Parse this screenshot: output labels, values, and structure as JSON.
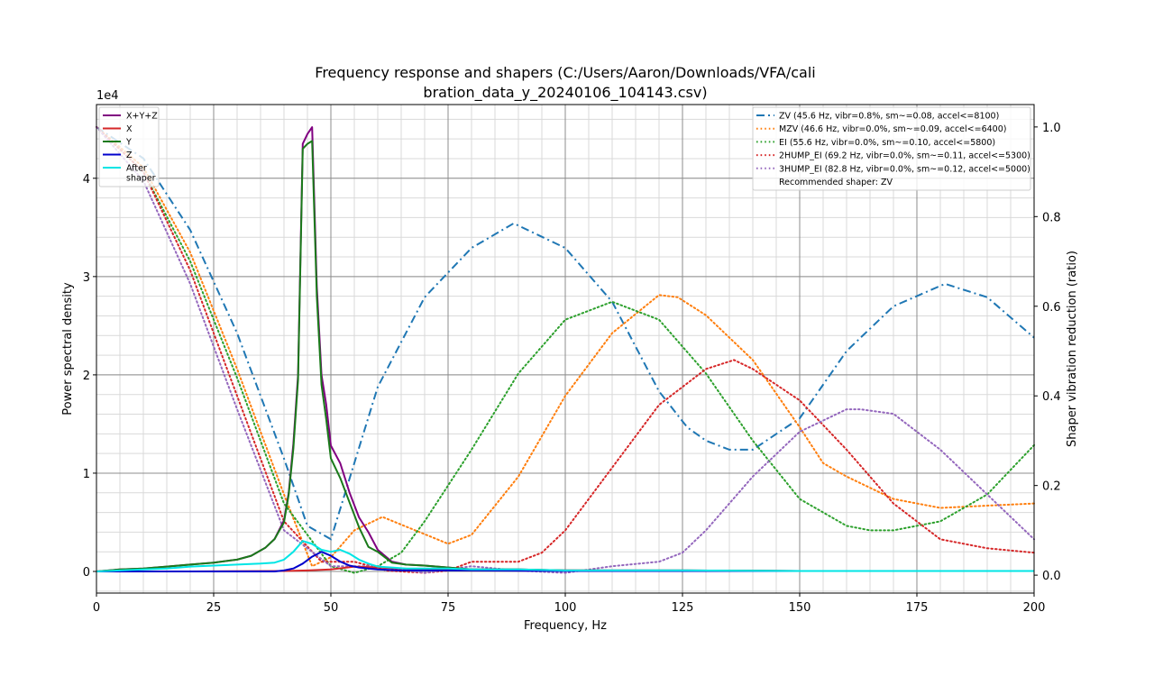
{
  "chart_data": {
    "type": "line",
    "title_line1": "Frequency response and shapers (C:/Users/Aaron/Downloads/VFA/cali",
    "title_line2": "bration_data_y_20240106_104143.csv)",
    "xlabel": "Frequency, Hz",
    "ylabel": "Power spectral density",
    "y2label": "Shaper vibration reduction (ratio)",
    "y_multiplier": "1e4",
    "xlim": [
      0,
      200
    ],
    "ylim": [
      -0.22,
      4.75
    ],
    "y2lim": [
      -0.04,
      1.05
    ],
    "x_ticks": [
      0,
      25,
      50,
      75,
      100,
      125,
      150,
      175,
      200
    ],
    "y_ticks": [
      0,
      1,
      2,
      3,
      4
    ],
    "y2_ticks": [
      0.0,
      0.2,
      0.4,
      0.6,
      0.8,
      1.0
    ],
    "y2_tick_labels": [
      "0.0",
      "0.2",
      "0.4",
      "0.6",
      "0.8",
      "1.0"
    ],
    "grid": true,
    "psd_legend_location": "upper-left",
    "shaper_legend_location": "upper-right",
    "psd_series": [
      {
        "name": "X+Y+Z",
        "color": "#800080",
        "dash": "none",
        "x": [
          0,
          5,
          10,
          15,
          20,
          25,
          30,
          33,
          36,
          38,
          40,
          41,
          42,
          43,
          44,
          45,
          46,
          47,
          48,
          49,
          50,
          52,
          54,
          56,
          58,
          60,
          63,
          66,
          70,
          75,
          80,
          90,
          100,
          125,
          150,
          175,
          200
        ],
        "y": [
          0,
          0.02,
          0.03,
          0.05,
          0.07,
          0.09,
          0.12,
          0.16,
          0.24,
          0.33,
          0.52,
          0.8,
          1.3,
          2.0,
          4.35,
          4.45,
          4.52,
          2.9,
          2.0,
          1.7,
          1.28,
          1.1,
          0.8,
          0.55,
          0.4,
          0.22,
          0.1,
          0.07,
          0.06,
          0.04,
          0.02,
          0.02,
          0.01,
          0.01,
          0.005,
          0.005,
          0.005
        ]
      },
      {
        "name": "X",
        "color": "#d62728",
        "dash": "none",
        "x": [
          0,
          20,
          40,
          45,
          50,
          55,
          60,
          70,
          80,
          100,
          150,
          200
        ],
        "y": [
          0,
          0.0,
          0.005,
          0.01,
          0.02,
          0.05,
          0.04,
          0.02,
          0.01,
          0.01,
          0.005,
          0.005
        ]
      },
      {
        "name": "Y",
        "color": "#1a7a1a",
        "dash": "none",
        "x": [
          0,
          5,
          10,
          15,
          20,
          25,
          30,
          33,
          36,
          38,
          40,
          41,
          42,
          43,
          44,
          45,
          46,
          47,
          48,
          49,
          50,
          52,
          54,
          56,
          58,
          60,
          63,
          66,
          70,
          75,
          80,
          90,
          100,
          125,
          150,
          175,
          200
        ],
        "y": [
          0,
          0.02,
          0.03,
          0.05,
          0.07,
          0.09,
          0.12,
          0.16,
          0.24,
          0.33,
          0.5,
          0.78,
          1.25,
          1.95,
          4.3,
          4.35,
          4.38,
          2.8,
          1.9,
          1.55,
          1.15,
          0.95,
          0.7,
          0.45,
          0.25,
          0.2,
          0.09,
          0.07,
          0.06,
          0.04,
          0.02,
          0.02,
          0.01,
          0.01,
          0.005,
          0.005,
          0.005
        ]
      },
      {
        "name": "Z",
        "color": "#0000cc",
        "dash": "none",
        "x": [
          0,
          20,
          38,
          40,
          42,
          44,
          46,
          48,
          50,
          52,
          54,
          56,
          58,
          60,
          65,
          70,
          80,
          100,
          150,
          200
        ],
        "y": [
          0,
          0,
          0.0,
          0.01,
          0.03,
          0.08,
          0.15,
          0.2,
          0.16,
          0.1,
          0.06,
          0.04,
          0.03,
          0.02,
          0.01,
          0.01,
          0.01,
          0.005,
          0.005,
          0.005
        ]
      },
      {
        "name": "After\nshaper",
        "color": "#00e5e5",
        "dash": "none",
        "x": [
          0,
          5,
          10,
          15,
          20,
          25,
          30,
          35,
          38,
          40,
          42,
          44,
          46,
          48,
          50,
          52,
          54,
          56,
          58,
          60,
          63,
          66,
          70,
          75,
          80,
          90,
          100,
          125,
          150,
          175,
          200
        ],
        "y": [
          0,
          0.01,
          0.02,
          0.03,
          0.05,
          0.06,
          0.07,
          0.08,
          0.09,
          0.12,
          0.2,
          0.31,
          0.28,
          0.22,
          0.2,
          0.22,
          0.18,
          0.12,
          0.08,
          0.05,
          0.04,
          0.03,
          0.03,
          0.03,
          0.02,
          0.02,
          0.01,
          0.01,
          0.005,
          0.005,
          0.005
        ]
      }
    ],
    "shaper_series": [
      {
        "name": "ZV (45.6 Hz, vibr=0.8%, sm~=0.08, accel<=8100)",
        "color": "#1f77b4",
        "dash": "dashdot",
        "x": [
          0,
          10,
          20,
          30,
          40,
          45,
          50,
          60,
          70,
          80,
          89,
          100,
          110,
          120,
          126,
          130,
          135,
          140,
          150,
          160,
          170,
          181,
          190,
          200
        ],
        "y": [
          1.0,
          0.93,
          0.77,
          0.54,
          0.26,
          0.11,
          0.08,
          0.42,
          0.62,
          0.73,
          0.785,
          0.73,
          0.61,
          0.41,
          0.33,
          0.3,
          0.28,
          0.28,
          0.35,
          0.5,
          0.6,
          0.65,
          0.62,
          0.53
        ]
      },
      {
        "name": "MZV (46.6 Hz, vibr=0.0%, sm~=0.09, accel<=6400)",
        "color": "#ff7f0e",
        "dash": "dotted",
        "x": [
          0,
          10,
          20,
          30,
          40,
          46,
          50,
          55,
          61,
          68,
          75,
          80,
          90,
          100,
          110,
          120,
          124,
          130,
          140,
          150,
          155,
          160,
          170,
          180,
          190,
          200
        ],
        "y": [
          1.0,
          0.91,
          0.72,
          0.46,
          0.18,
          0.02,
          0.04,
          0.1,
          0.13,
          0.1,
          0.07,
          0.09,
          0.22,
          0.4,
          0.54,
          0.625,
          0.62,
          0.58,
          0.48,
          0.33,
          0.25,
          0.22,
          0.17,
          0.15,
          0.155,
          0.16
        ]
      },
      {
        "name": "EI (55.6 Hz, vibr=0.0%, sm~=0.10, accel<=5800)",
        "color": "#2ca02c",
        "dash": "dotted",
        "x": [
          0,
          10,
          20,
          30,
          40,
          50,
          55,
          60,
          65,
          70,
          80,
          90,
          100,
          110,
          120,
          130,
          140,
          150,
          160,
          165,
          170,
          180,
          190,
          200
        ],
        "y": [
          1.0,
          0.9,
          0.7,
          0.44,
          0.16,
          0.02,
          0.005,
          0.02,
          0.05,
          0.12,
          0.28,
          0.45,
          0.57,
          0.61,
          0.57,
          0.45,
          0.3,
          0.17,
          0.11,
          0.1,
          0.1,
          0.12,
          0.18,
          0.29
        ]
      },
      {
        "name": "2HUMP_EI (69.2 Hz, vibr=0.0%, sm~=0.11, accel<=5300)",
        "color": "#d62728",
        "dash": "dotted",
        "x": [
          0,
          10,
          20,
          30,
          40,
          48,
          55,
          62,
          70,
          75,
          80,
          85,
          90,
          95,
          100,
          110,
          120,
          130,
          136,
          140,
          150,
          160,
          170,
          180,
          190,
          200
        ],
        "y": [
          1.0,
          0.9,
          0.68,
          0.4,
          0.12,
          0.03,
          0.03,
          0.01,
          0.005,
          0.01,
          0.03,
          0.03,
          0.03,
          0.05,
          0.1,
          0.24,
          0.38,
          0.46,
          0.48,
          0.46,
          0.39,
          0.28,
          0.16,
          0.08,
          0.06,
          0.05
        ]
      },
      {
        "name": "3HUMP_EI (82.8 Hz, vibr=0.0%, sm~=0.12, accel<=5000)",
        "color": "#9467bd",
        "dash": "dotted",
        "x": [
          0,
          10,
          20,
          30,
          40,
          50,
          60,
          70,
          80,
          90,
          100,
          110,
          120,
          125,
          130,
          140,
          150,
          160,
          163,
          170,
          180,
          190,
          200
        ],
        "y": [
          1.0,
          0.88,
          0.65,
          0.37,
          0.1,
          0.02,
          0.02,
          0.005,
          0.02,
          0.01,
          0.005,
          0.02,
          0.03,
          0.05,
          0.1,
          0.22,
          0.32,
          0.37,
          0.37,
          0.36,
          0.28,
          0.18,
          0.08
        ]
      }
    ],
    "recommended_text": "Recommended shaper: ZV"
  }
}
